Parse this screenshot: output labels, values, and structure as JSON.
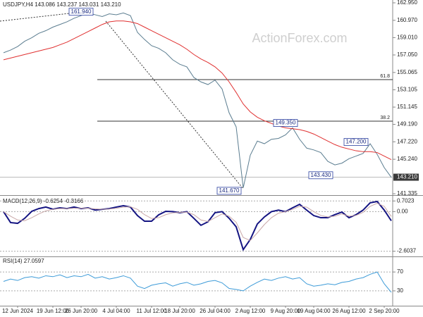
{
  "chart_data": [
    {
      "type": "line",
      "title": "USDJPY,H4 143.086 143.237 143.031 143.210",
      "watermark": "ActionForex.com",
      "series": [
        {
          "color": "#5b7d90",
          "values": [
            157.3,
            157.6,
            158.0,
            158.6,
            159.0,
            159.5,
            159.8,
            160.2,
            160.5,
            160.8,
            161.2,
            161.5,
            161.8,
            161.6,
            161.4,
            161.7,
            161.6,
            161.8,
            161.5,
            159.6,
            158.8,
            158.1,
            157.8,
            157.3,
            156.5,
            156.0,
            155.7,
            154.5,
            154.0,
            153.7,
            154.2,
            153.2,
            150.5,
            148.9,
            142.0,
            145.7,
            147.3,
            147.0,
            147.5,
            147.6,
            148.0,
            148.8,
            147.5,
            146.5,
            146.3,
            146.0,
            145.0,
            144.6,
            144.8,
            145.3,
            145.6,
            145.9,
            147.0,
            145.8,
            144.3,
            143.2
          ]
        },
        {
          "color": "#e03030",
          "values": [
            156.5,
            156.7,
            156.9,
            157.1,
            157.3,
            157.5,
            157.7,
            157.9,
            158.2,
            158.5,
            158.9,
            159.3,
            159.7,
            160.1,
            160.5,
            160.8,
            160.9,
            160.9,
            160.8,
            160.6,
            160.2,
            159.8,
            159.4,
            159.0,
            158.6,
            158.2,
            157.7,
            157.1,
            156.6,
            156.2,
            155.7,
            155.0,
            154.0,
            152.8,
            151.5,
            150.6,
            150.0,
            149.6,
            149.3,
            149.0,
            148.8,
            148.7,
            148.6,
            148.4,
            148.1,
            147.7,
            147.3,
            146.9,
            146.6,
            146.4,
            146.2,
            146.1,
            146.1,
            146.0,
            145.6,
            145.2
          ]
        }
      ],
      "ylim": [
        141.26,
        163.27
      ],
      "yticks": [
        {
          "value": 162.95,
          "label": "162.950"
        },
        {
          "value": 160.97,
          "label": "160.970"
        },
        {
          "value": 159.01,
          "label": "159.010"
        },
        {
          "value": 157.05,
          "label": "157.050"
        },
        {
          "value": 155.065,
          "label": "155.065"
        },
        {
          "value": 153.105,
          "label": "153.105"
        },
        {
          "value": 151.145,
          "label": "151.145"
        },
        {
          "value": 149.19,
          "label": "149.190"
        },
        {
          "value": 147.22,
          "label": "147.220"
        },
        {
          "value": 145.24,
          "label": "145.240"
        },
        {
          "value": 141.335,
          "label": "141.335"
        }
      ],
      "last_price": {
        "value": 143.21,
        "label": "143.210"
      },
      "fib_levels": [
        {
          "value": 154.26,
          "label": "61.8"
        },
        {
          "value": 149.55,
          "label": "38.2"
        }
      ],
      "annotations": [
        {
          "index": 11,
          "value": 161.94,
          "label": "161.940"
        },
        {
          "index": 32,
          "value": 141.67,
          "label": "141.670"
        },
        {
          "index": 40,
          "value": 149.35,
          "label": "149.350"
        },
        {
          "index": 45,
          "value": 143.43,
          "label": "143.430"
        },
        {
          "index": 50,
          "value": 147.2,
          "label": "147.200"
        }
      ]
    },
    {
      "type": "line",
      "title": "MACD(12,26,9) -0.6254 -0.3166",
      "series": [
        {
          "color": "#141482",
          "values": [
            0.0,
            -0.72,
            -0.77,
            -0.44,
            0.02,
            0.2,
            0.3,
            0.16,
            0.25,
            0.2,
            0.3,
            0.2,
            0.25,
            0.1,
            0.15,
            0.2,
            0.3,
            0.39,
            0.3,
            -0.26,
            -0.63,
            -0.63,
            -0.21,
            0.02,
            0.0,
            -0.07,
            0.0,
            -0.44,
            -0.9,
            -0.67,
            -0.07,
            0.0,
            -0.44,
            -1.0,
            -2.5,
            -1.83,
            -0.81,
            -0.35,
            0.0,
            0.1,
            0.0,
            0.25,
            0.48,
            0.1,
            -0.26,
            -0.4,
            -0.4,
            -0.2,
            -0.03,
            -0.4,
            -0.2,
            0.1,
            0.58,
            0.67,
            0.1,
            -0.6
          ]
        },
        {
          "color": "#c9a8a8",
          "values": [
            0.0,
            -0.3,
            -0.55,
            -0.6,
            -0.4,
            -0.15,
            0.05,
            0.15,
            0.2,
            0.2,
            0.22,
            0.22,
            0.22,
            0.18,
            0.16,
            0.17,
            0.22,
            0.3,
            0.32,
            0.15,
            -0.2,
            -0.45,
            -0.4,
            -0.2,
            -0.08,
            -0.05,
            -0.03,
            -0.2,
            -0.55,
            -0.65,
            -0.4,
            -0.15,
            -0.3,
            -0.7,
            -1.7,
            -1.9,
            -1.4,
            -0.85,
            -0.4,
            -0.1,
            0.0,
            0.15,
            0.35,
            0.3,
            0.0,
            -0.25,
            -0.35,
            -0.3,
            -0.15,
            -0.3,
            -0.25,
            -0.05,
            0.35,
            0.55,
            0.35,
            -0.32
          ]
        }
      ],
      "ylim": [
        -2.9,
        0.9
      ],
      "yticks": [
        0.7023,
        {
          "value": 0,
          "label": "0.00"
        },
        -2.6037
      ]
    },
    {
      "type": "line",
      "title": "RSI(14) 27.0597",
      "series": [
        {
          "color": "#3d9bd8",
          "values": [
            50,
            55,
            52,
            58,
            60,
            57,
            62,
            60,
            64,
            58,
            62,
            60,
            65,
            57,
            60,
            55,
            58,
            62,
            57,
            40,
            35,
            42,
            45,
            47,
            40,
            45,
            48,
            42,
            45,
            50,
            52,
            47,
            35,
            33,
            30,
            40,
            48,
            55,
            52,
            57,
            60,
            55,
            58,
            45,
            40,
            42,
            45,
            43,
            48,
            50,
            55,
            58,
            65,
            70,
            45,
            27
          ]
        }
      ],
      "ylim": [
        0,
        100
      ],
      "yticks": [
        30,
        70
      ],
      "categories": [
        null,
        null,
        "12 Jun 2024",
        null,
        null,
        null,
        null,
        "19 Jun 12:00",
        null,
        null,
        null,
        "26 Jun 20:00",
        null,
        null,
        null,
        null,
        "4 Jul 04:00",
        null,
        null,
        null,
        null,
        "11 Jul 12:00",
        null,
        null,
        null,
        "18 Jul 20:00",
        null,
        null,
        null,
        null,
        "26 Jul 04:00",
        null,
        null,
        null,
        null,
        "2 Aug 12:00",
        null,
        null,
        null,
        null,
        "9 Aug 20:00",
        null,
        null,
        null,
        "19 Aug 04:00",
        null,
        null,
        null,
        null,
        "26 Aug 12:00",
        null,
        null,
        null,
        null,
        "2 Sep 20:00",
        null
      ]
    }
  ]
}
